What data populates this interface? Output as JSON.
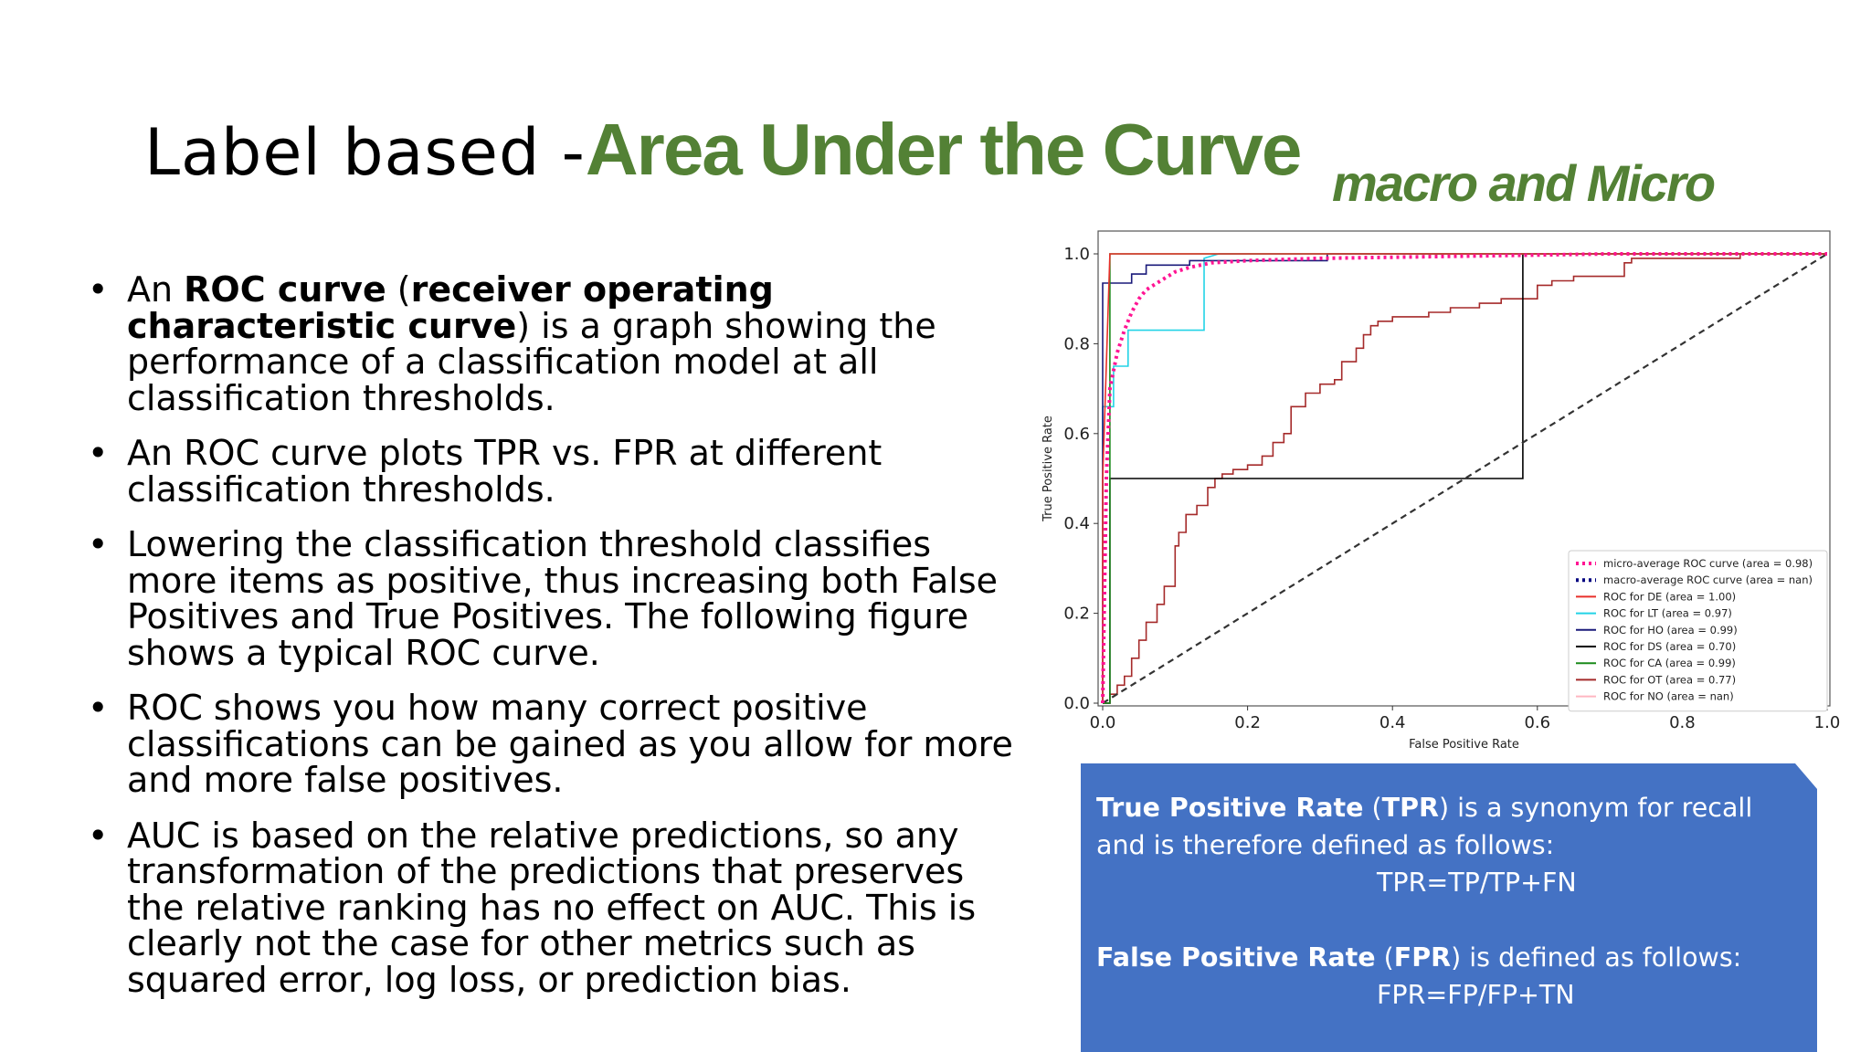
{
  "slide": {
    "title_prefix": "Label based -",
    "title_main": "Area Under the Curve",
    "title_sub": "macro and Micro",
    "bullets": [
      {
        "parts": [
          {
            "text": "An ",
            "bold": false
          },
          {
            "text": "ROC curve",
            "bold": true
          },
          {
            "text": " (",
            "bold": false
          },
          {
            "text": "receiver operating characteristic curve",
            "bold": true
          },
          {
            "text": ") is a graph showing the performance of a classification model at all classification thresholds.",
            "bold": false
          }
        ]
      },
      {
        "parts": [
          {
            "text": "An ROC curve plots TPR vs. FPR at different classification thresholds.",
            "bold": false
          }
        ]
      },
      {
        "parts": [
          {
            "text": "Lowering the classification threshold classifies more items as positive, thus increasing both False Positives and True Positives. The following figure shows a typical ROC curve.",
            "bold": false
          }
        ]
      },
      {
        "parts": [
          {
            "text": "ROC shows you how many correct positive classifications can be gained as you allow for more and more false positives.",
            "bold": false
          }
        ]
      },
      {
        "parts": [
          {
            "text": "AUC is based on the relative predictions, so any transformation of the predictions that preserves the relative ranking has no effect on AUC. This is clearly not the case for other metrics such as squared error, log loss, or prediction bias.",
            "bold": false
          }
        ]
      }
    ],
    "info": {
      "tpr_bold1": "True Positive Rate",
      "tpr_mid": " (",
      "tpr_bold2": "TPR",
      "tpr_rest": ") is a synonym for recall and is therefore defined as follows:",
      "tpr_formula": "TPR=TP/TP+FN",
      "fpr_bold1": "False Positive Rate",
      "fpr_mid": " (",
      "fpr_bold2": "FPR",
      "fpr_rest": ") is defined as follows:",
      "fpr_formula": "FPR=FP/FP+TN",
      "box_color": "#4472c4"
    },
    "accent_color": "#538135"
  },
  "chart_data": {
    "type": "line",
    "xlabel": "False Positive Rate",
    "ylabel": "True Positive Rate",
    "xlim": [
      0.0,
      1.0
    ],
    "ylim": [
      0.0,
      1.0
    ],
    "xticks": [
      "0.0",
      "0.2",
      "0.4",
      "0.6",
      "0.8",
      "1.0"
    ],
    "yticks": [
      "0.0",
      "0.2",
      "0.4",
      "0.6",
      "0.8",
      "1.0"
    ],
    "grid": false,
    "legend_position": "lower-right",
    "series": [
      {
        "name": "micro-average ROC curve (area = 0.98)",
        "color": "#ff1493",
        "style": "dotted",
        "width": 4,
        "x": [
          0,
          0.005,
          0.01,
          0.02,
          0.03,
          0.04,
          0.05,
          0.06,
          0.08,
          0.1,
          0.12,
          0.15,
          0.2,
          0.3,
          0.5,
          0.7,
          1.0
        ],
        "y": [
          0,
          0.5,
          0.7,
          0.78,
          0.83,
          0.87,
          0.9,
          0.92,
          0.94,
          0.96,
          0.97,
          0.98,
          0.985,
          0.99,
          0.995,
          1.0,
          1.0
        ]
      },
      {
        "name": "macro-average ROC curve (area = nan)",
        "color": "#000080",
        "style": "dotted",
        "width": 4,
        "x": [],
        "y": []
      },
      {
        "name": "ROC for  DE (area = 1.00)",
        "color": "#e8302a",
        "style": "solid",
        "width": 1.6,
        "x": [
          0,
          0,
          0.01,
          1.0
        ],
        "y": [
          0,
          0.5,
          1.0,
          1.0
        ]
      },
      {
        "name": "ROC for  LT (area = 0.97)",
        "color": "#22d3e6",
        "style": "solid",
        "width": 1.6,
        "x": [
          0,
          0,
          0.015,
          0.015,
          0.035,
          0.035,
          0.14,
          0.14,
          0.16,
          1.0
        ],
        "y": [
          0,
          0.66,
          0.66,
          0.75,
          0.75,
          0.83,
          0.83,
          0.99,
          1.0,
          1.0
        ]
      },
      {
        "name": "ROC for  HO (area = 0.99)",
        "color": "#1a1a7a",
        "style": "solid",
        "width": 1.6,
        "x": [
          0,
          0,
          0.04,
          0.04,
          0.06,
          0.06,
          0.12,
          0.12,
          0.31,
          0.31,
          1.0
        ],
        "y": [
          0,
          0.935,
          0.935,
          0.955,
          0.955,
          0.975,
          0.975,
          0.985,
          0.985,
          1.0,
          1.0
        ]
      },
      {
        "name": "ROC for  DS (area = 0.70)",
        "color": "#000000",
        "style": "solid",
        "width": 1.6,
        "x": [
          0,
          0.01,
          0.01,
          0.58,
          0.58,
          1.0
        ],
        "y": [
          0,
          0,
          0.5,
          0.5,
          1.0,
          1.0
        ]
      },
      {
        "name": "ROC for  CA (area = 0.99)",
        "color": "#1a8a1a",
        "style": "solid",
        "width": 1.6,
        "x": [
          0,
          0.01,
          0.01,
          1.0
        ],
        "y": [
          0,
          0,
          1.0,
          1.0
        ]
      },
      {
        "name": "ROC for  OT (area = 0.77)",
        "color": "#a52a2a",
        "style": "solid",
        "width": 1.6,
        "x": [
          0,
          0.01,
          0.01,
          0.02,
          0.02,
          0.03,
          0.03,
          0.04,
          0.04,
          0.05,
          0.05,
          0.06,
          0.06,
          0.075,
          0.075,
          0.085,
          0.085,
          0.1,
          0.1,
          0.105,
          0.105,
          0.115,
          0.115,
          0.13,
          0.13,
          0.145,
          0.145,
          0.155,
          0.155,
          0.165,
          0.165,
          0.18,
          0.18,
          0.2,
          0.2,
          0.22,
          0.22,
          0.235,
          0.235,
          0.25,
          0.25,
          0.26,
          0.26,
          0.28,
          0.28,
          0.3,
          0.3,
          0.32,
          0.32,
          0.33,
          0.33,
          0.35,
          0.35,
          0.36,
          0.36,
          0.37,
          0.37,
          0.38,
          0.38,
          0.4,
          0.4,
          0.45,
          0.45,
          0.48,
          0.48,
          0.52,
          0.52,
          0.55,
          0.55,
          0.6,
          0.6,
          0.62,
          0.62,
          0.65,
          0.65,
          0.72,
          0.72,
          0.73,
          0.73,
          0.88,
          0.88,
          1.0
        ],
        "y": [
          0,
          0,
          0.02,
          0.02,
          0.04,
          0.04,
          0.06,
          0.06,
          0.1,
          0.1,
          0.14,
          0.14,
          0.18,
          0.18,
          0.22,
          0.22,
          0.26,
          0.26,
          0.35,
          0.35,
          0.38,
          0.38,
          0.42,
          0.42,
          0.44,
          0.44,
          0.48,
          0.48,
          0.5,
          0.5,
          0.51,
          0.51,
          0.52,
          0.52,
          0.53,
          0.53,
          0.55,
          0.55,
          0.58,
          0.58,
          0.6,
          0.6,
          0.66,
          0.66,
          0.69,
          0.69,
          0.71,
          0.71,
          0.72,
          0.72,
          0.76,
          0.76,
          0.79,
          0.79,
          0.82,
          0.82,
          0.84,
          0.84,
          0.85,
          0.85,
          0.86,
          0.86,
          0.87,
          0.87,
          0.88,
          0.88,
          0.89,
          0.89,
          0.9,
          0.9,
          0.93,
          0.93,
          0.94,
          0.94,
          0.95,
          0.95,
          0.98,
          0.98,
          0.99,
          0.99,
          1.0,
          1.0
        ]
      },
      {
        "name": "ROC for  NO (area = nan)",
        "color": "#ffb6c1",
        "style": "solid",
        "width": 1.6,
        "x": [],
        "y": []
      },
      {
        "name": "",
        "color": "#333333",
        "style": "dashed",
        "width": 2.2,
        "x": [
          0,
          1
        ],
        "y": [
          0,
          1
        ]
      }
    ]
  }
}
